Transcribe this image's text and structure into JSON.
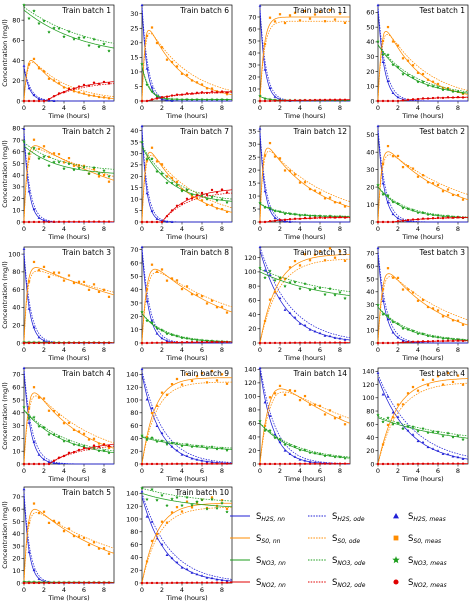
{
  "figure": {
    "xlabel": "Time (hours)",
    "ylabel": "Concentration (mg/l)",
    "series_colors": {
      "S_H2S": "#1f1fd6",
      "S_S0": "#ff8c00",
      "S_NO3": "#1e9e1e",
      "S_NO2": "#e00000"
    }
  },
  "legend": {
    "nn_entries": [
      {
        "sub": "H2S, nn",
        "color": "#1f1fd6"
      },
      {
        "sub": "S0, nn",
        "color": "#ff8c00"
      },
      {
        "sub": "NO3, nn",
        "color": "#1e9e1e"
      },
      {
        "sub": "NO2, nn",
        "color": "#e00000"
      }
    ],
    "ode_entries": [
      {
        "sub": "H2S, ode",
        "color": "#1f1fd6"
      },
      {
        "sub": "S0, ode",
        "color": "#ff8c00"
      },
      {
        "sub": "NO3, ode",
        "color": "#1e9e1e"
      },
      {
        "sub": "NO2, ode",
        "color": "#e00000"
      }
    ],
    "meas_entries": [
      {
        "sub": "H2S, meas",
        "color": "#1f1fd6",
        "marker": "triangle"
      },
      {
        "sub": "S0, meas",
        "color": "#ff8c00",
        "marker": "square"
      },
      {
        "sub": "NO3, meas",
        "color": "#1e9e1e",
        "marker": "star"
      },
      {
        "sub": "NO2, meas",
        "color": "#e00000",
        "marker": "circle"
      }
    ]
  },
  "chart_data": [
    {
      "type": "line",
      "title": "Train batch 1",
      "xlabel": "Time (hours)",
      "ylabel": "Concentration (mg/l)",
      "xlim": [
        0,
        9
      ],
      "ylim": [
        0,
        95
      ],
      "xticks": [
        0,
        2,
        4,
        6,
        8
      ],
      "yticks": [
        0,
        20,
        40,
        60,
        80
      ],
      "params": {
        "h0": 33,
        "hk": 1.8,
        "sA": 47,
        "sk": 0.35,
        "st": 0.9,
        "n0": 90,
        "nEnd": 42,
        "nk": 0.17,
        "no2max": 22,
        "no2k": 0.3,
        "no2d": 2.2
      }
    },
    {
      "type": "line",
      "title": "Train batch 6",
      "xlabel": "Time (hours)",
      "ylabel": "",
      "xlim": [
        0,
        9
      ],
      "ylim": [
        0,
        33
      ],
      "xticks": [
        0,
        2,
        4,
        6,
        8
      ],
      "yticks": [
        0,
        5,
        10,
        15,
        20,
        25,
        30
      ],
      "params": {
        "h0": 32,
        "hk": 2.0,
        "sA": 28,
        "sk": 0.3,
        "st": 0.8,
        "n0": 12,
        "nEnd": 0.5,
        "nk": 1.5,
        "no2max": 3.5,
        "no2k": 0.3,
        "no2d": 0.5
      }
    },
    {
      "type": "line",
      "title": "Train batch 11",
      "xlabel": "Time (hours)",
      "ylabel": "",
      "xlim": [
        0,
        9
      ],
      "ylim": [
        0,
        80
      ],
      "xticks": [
        0,
        2,
        4,
        6,
        8
      ],
      "yticks": [
        0,
        10,
        20,
        30,
        40,
        50,
        60,
        70
      ],
      "params": {
        "h0": 75,
        "hk": 2.0,
        "sA": 70,
        "sk": 0.0,
        "st": 1.2,
        "n0": 4,
        "nEnd": 0.5,
        "nk": 1.5,
        "no2max": 2.0,
        "no2k": 0.1,
        "no2d": 0.5
      }
    },
    {
      "type": "line",
      "title": "Test batch 1",
      "xlabel": "Time (hours)",
      "ylabel": "",
      "xlim": [
        0,
        9
      ],
      "ylim": [
        0,
        65
      ],
      "xticks": [
        0,
        2,
        4,
        6,
        8
      ],
      "yticks": [
        0,
        10,
        20,
        30,
        40,
        50,
        60
      ],
      "params": {
        "h0": 62,
        "hk": 1.6,
        "sA": 55,
        "sk": 0.3,
        "st": 1.0,
        "n0": 38,
        "nEnd": 3,
        "nk": 0.3,
        "no2max": 3.0,
        "no2k": 0.3,
        "no2d": 2.0
      }
    },
    {
      "type": "line",
      "title": "Train batch 2",
      "xlabel": "Time (hours)",
      "ylabel": "Concentration (mg/l)",
      "xlim": [
        0,
        9
      ],
      "ylim": [
        0,
        82
      ],
      "xticks": [
        0,
        2,
        4,
        6,
        8
      ],
      "yticks": [
        0,
        10,
        20,
        30,
        40,
        50,
        60,
        70,
        80
      ],
      "params": {
        "h0": 75,
        "hk": 2.0,
        "sA": 70,
        "sk": 0.08,
        "st": 0.9,
        "n0": 65,
        "nEnd": 40,
        "nk": 0.3,
        "no2max": 0.5,
        "no2k": 0.1,
        "no2d": 0.5
      }
    },
    {
      "type": "line",
      "title": "Train batch 7",
      "xlabel": "Time (hours)",
      "ylabel": "",
      "xlim": [
        0,
        9
      ],
      "ylim": [
        0,
        42
      ],
      "xticks": [
        0,
        2,
        4,
        6,
        8
      ],
      "yticks": [
        0,
        5,
        10,
        15,
        20,
        25,
        30,
        35,
        40
      ],
      "params": {
        "h0": 40,
        "hk": 2.2,
        "sA": 35,
        "sk": 0.25,
        "st": 0.9,
        "n0": 33,
        "nEnd": 8,
        "nk": 0.35,
        "no2max": 15,
        "no2k": 0.4,
        "no2d": 2.0
      }
    },
    {
      "type": "line",
      "title": "Train batch 12",
      "xlabel": "Time (hours)",
      "ylabel": "",
      "xlim": [
        0,
        9
      ],
      "ylim": [
        0,
        37
      ],
      "xticks": [
        0,
        2,
        4,
        6,
        8
      ],
      "yticks": [
        0,
        5,
        10,
        15,
        20,
        25,
        30,
        35
      ],
      "params": {
        "h0": 34,
        "hk": 2.0,
        "sA": 32,
        "sk": 0.2,
        "st": 0.8,
        "n0": 7,
        "nEnd": 2,
        "nk": 0.5,
        "no2max": 2.0,
        "no2k": 0.3,
        "no2d": 0.5
      }
    },
    {
      "type": "line",
      "title": "Test batch 2",
      "xlabel": "Time (hours)",
      "ylabel": "",
      "xlim": [
        0,
        9
      ],
      "ylim": [
        0,
        55
      ],
      "xticks": [
        0,
        2,
        4,
        6,
        8
      ],
      "yticks": [
        0,
        10,
        20,
        30,
        40,
        50
      ],
      "params": {
        "h0": 52,
        "hk": 1.6,
        "sA": 45,
        "sk": 0.15,
        "st": 1.0,
        "n0": 20,
        "nEnd": 2,
        "nk": 0.4,
        "no2max": 3.0,
        "no2k": 0.3,
        "no2d": 1.5
      }
    },
    {
      "type": "line",
      "title": "Train batch 3",
      "xlabel": "Time (hours)",
      "ylabel": "Concentration (mg/l)",
      "xlim": [
        0,
        9
      ],
      "ylim": [
        0,
        108
      ],
      "xticks": [
        0,
        2,
        4,
        6,
        8
      ],
      "yticks": [
        0,
        20,
        40,
        60,
        80,
        100
      ],
      "params": {
        "h0": 100,
        "hk": 1.8,
        "sA": 90,
        "sk": 0.06,
        "st": 0.9,
        "n0": 1,
        "nEnd": 0.5,
        "nk": 0.5,
        "no2max": 0.5,
        "no2k": 0.1,
        "no2d": 0.5
      }
    },
    {
      "type": "line",
      "title": "Train batch 8",
      "xlabel": "Time (hours)",
      "ylabel": "",
      "xlim": [
        0,
        9
      ],
      "ylim": [
        0,
        72
      ],
      "xticks": [
        0,
        2,
        4,
        6,
        8
      ],
      "yticks": [
        0,
        10,
        20,
        30,
        40,
        50,
        60,
        70
      ],
      "params": {
        "h0": 70,
        "hk": 1.5,
        "sA": 62,
        "sk": 0.12,
        "st": 1.3,
        "n0": 22,
        "nEnd": 0.5,
        "nk": 0.45,
        "no2max": 1.0,
        "no2k": 0.2,
        "no2d": 0.5
      }
    },
    {
      "type": "line",
      "title": "Train batch 13",
      "xlabel": "Time (hours)",
      "ylabel": "",
      "xlim": [
        0,
        9
      ],
      "ylim": [
        0,
        135
      ],
      "xticks": [
        0,
        2,
        4,
        6,
        8
      ],
      "yticks": [
        0,
        20,
        40,
        60,
        80,
        100,
        120
      ],
      "params": {
        "h0": 130,
        "hk": 0.38,
        "sA": 125,
        "sk": 0.0,
        "st": 5.0,
        "n0": 100,
        "nEnd": 55,
        "nk": 0.15,
        "no2max": 1.0,
        "no2k": 0.1,
        "no2d": 0.5
      }
    },
    {
      "type": "line",
      "title": "Test batch 3",
      "xlabel": "Time (hours)",
      "ylabel": "",
      "xlim": [
        0,
        9
      ],
      "ylim": [
        0,
        75
      ],
      "xticks": [
        0,
        2,
        4,
        6,
        8
      ],
      "yticks": [
        0,
        10,
        20,
        30,
        40,
        50,
        60,
        70
      ],
      "params": {
        "h0": 70,
        "hk": 1.4,
        "sA": 62,
        "sk": 0.18,
        "st": 1.2,
        "n0": 28,
        "nEnd": 1,
        "nk": 0.35,
        "no2max": 2.0,
        "no2k": 0.3,
        "no2d": 1.5
      }
    },
    {
      "type": "line",
      "title": "Train batch 4",
      "xlabel": "Time (hours)",
      "ylabel": "Concentration (mg/l)",
      "xlim": [
        0,
        9
      ],
      "ylim": [
        0,
        75
      ],
      "xticks": [
        0,
        2,
        4,
        6,
        8
      ],
      "yticks": [
        0,
        10,
        20,
        30,
        40,
        50,
        60,
        70
      ],
      "params": {
        "h0": 72,
        "hk": 1.5,
        "sA": 64,
        "sk": 0.2,
        "st": 1.2,
        "n0": 42,
        "nEnd": 5,
        "nk": 0.25,
        "no2max": 18,
        "no2k": 0.3,
        "no2d": 2.5
      }
    },
    {
      "type": "line",
      "title": "Train batch 9",
      "xlabel": "Time (hours)",
      "ylabel": "",
      "xlim": [
        0,
        9
      ],
      "ylim": [
        0,
        150
      ],
      "xticks": [
        0,
        2,
        4,
        6,
        8
      ],
      "yticks": [
        0,
        20,
        40,
        60,
        80,
        100,
        120,
        140
      ],
      "params": {
        "h0": 140,
        "hk": 0.55,
        "sA": 135,
        "sk": 0.0,
        "st": 3.8,
        "n0": 42,
        "nEnd": 18,
        "nk": 0.18,
        "no2max": 1.0,
        "no2k": 0.1,
        "no2d": 0.5
      }
    },
    {
      "type": "line",
      "title": "Train batch 14",
      "xlabel": "Time (hours)",
      "ylabel": "",
      "xlim": [
        0,
        9
      ],
      "ylim": [
        0,
        142
      ],
      "xticks": [
        0,
        2,
        4,
        6,
        8
      ],
      "yticks": [
        0,
        20,
        40,
        60,
        80,
        100,
        120,
        140
      ],
      "params": {
        "h0": 140,
        "hk": 0.75,
        "sA": 128,
        "sk": 0.1,
        "st": 2.4,
        "n0": 60,
        "nEnd": 5,
        "nk": 0.3,
        "no2max": 1.0,
        "no2k": 0.1,
        "no2d": 0.5
      }
    },
    {
      "type": "line",
      "title": "Test batch 4",
      "xlabel": "Time (hours)",
      "ylabel": "",
      "xlim": [
        0,
        9
      ],
      "ylim": [
        0,
        145
      ],
      "xticks": [
        0,
        2,
        4,
        6,
        8
      ],
      "yticks": [
        0,
        20,
        40,
        60,
        80,
        100,
        120,
        140
      ],
      "params": {
        "h0": 130,
        "hk": 0.32,
        "sA": 130,
        "sk": 0.0,
        "st": 5.5,
        "n0": 70,
        "nEnd": 25,
        "nk": 0.13,
        "no2max": 1.0,
        "no2k": 0.1,
        "no2d": 0.5
      }
    },
    {
      "type": "line",
      "title": "Train batch 5",
      "xlabel": "Time (hours)",
      "ylabel": "Concentration (mg/l)",
      "xlim": [
        0,
        9
      ],
      "ylim": [
        0,
        78
      ],
      "xticks": [
        0,
        2,
        4,
        6,
        8
      ],
      "yticks": [
        0,
        10,
        20,
        30,
        40,
        50,
        60,
        70
      ],
      "params": {
        "h0": 72,
        "hk": 2.0,
        "sA": 66,
        "sk": 0.12,
        "st": 1.0,
        "n0": 1,
        "nEnd": 0.5,
        "nk": 0.5,
        "no2max": 0.5,
        "no2k": 0.1,
        "no2d": 0.5
      }
    },
    {
      "type": "line",
      "title": "Train batch 10",
      "xlabel": "Time (hours)",
      "ylabel": "",
      "xlim": [
        0,
        9
      ],
      "ylim": [
        0,
        150
      ],
      "xticks": [
        0,
        2,
        4,
        6,
        8
      ],
      "yticks": [
        0,
        20,
        40,
        60,
        80,
        100,
        120,
        140
      ],
      "params": {
        "h0": 135,
        "hk": 0.42,
        "sA": 125,
        "sk": 0.0,
        "st": 4.5,
        "n0": 140,
        "nEnd": 115,
        "nk": 0.2,
        "no2max": 1.0,
        "no2k": 0.1,
        "no2d": 0.5
      }
    }
  ]
}
